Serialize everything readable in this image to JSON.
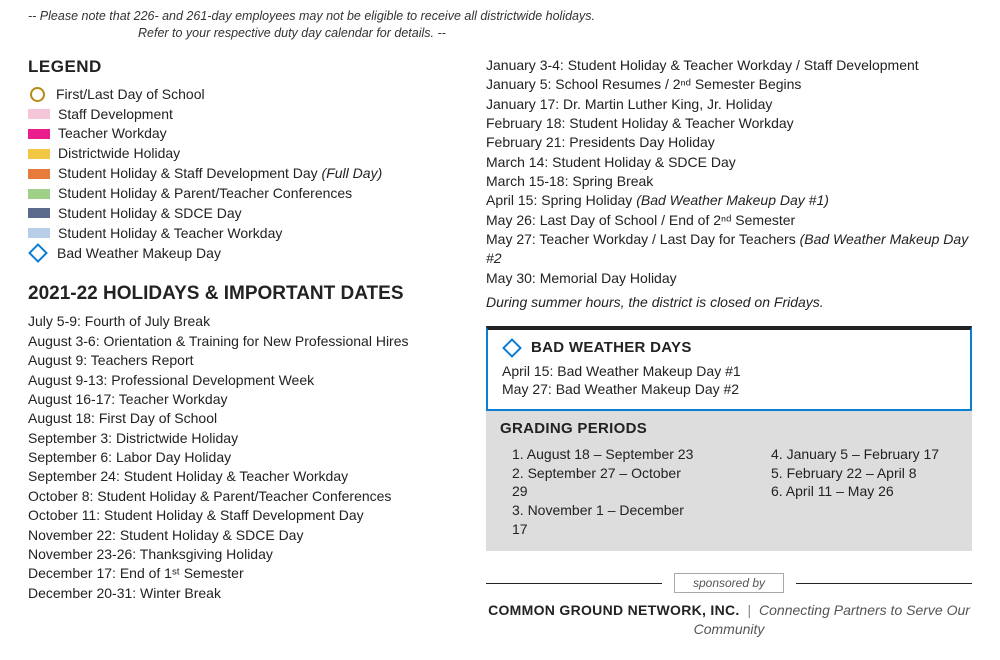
{
  "note_line1": "-- Please note that 226- and 261-day employees may not be eligible to receive all districtwide holidays.",
  "note_line2": "Refer to your respective duty day calendar for details.  --",
  "legend": {
    "title": "LEGEND",
    "items": [
      {
        "type": "circle",
        "color": "#b58a1a",
        "label": "First/Last Day of School"
      },
      {
        "type": "swatch",
        "color": "#f5c6d9",
        "label": "Staff Development"
      },
      {
        "type": "swatch",
        "color": "#e91e8c",
        "label": "Teacher Workday"
      },
      {
        "type": "swatch",
        "color": "#f2c744",
        "label": "Districtwide Holiday"
      },
      {
        "type": "swatch",
        "color": "#e77b3c",
        "label": "Student Holiday & Staff Development Day",
        "sub": "(Full Day)"
      },
      {
        "type": "swatch",
        "color": "#9fd087",
        "label": "Student Holiday & Parent/Teacher Conferences"
      },
      {
        "type": "swatch",
        "color": "#5a6a8a",
        "label": "Student Holiday & SDCE Day"
      },
      {
        "type": "swatch",
        "color": "#b8cde8",
        "label": "Student Holiday & Teacher Workday"
      },
      {
        "type": "diamond",
        "color": "#0a7ed2",
        "label": "Bad Weather Makeup Day"
      }
    ]
  },
  "holidays_title": "2021-22 HOLIDAYS & IMPORTANT DATES",
  "dates_left": [
    "July 5-9:  Fourth of July Break",
    "August 3-6:  Orientation & Training for New Professional Hires",
    "August 9:  Teachers Report",
    "August 9-13:  Professional Development Week",
    "August 16-17:  Teacher Workday",
    "August 18:  First Day of School",
    "September 3:  Districtwide Holiday",
    "September 6:  Labor Day Holiday",
    "September 24:  Student Holiday & Teacher Workday",
    "October 8:  Student Holiday & Parent/Teacher Conferences",
    "October 11:  Student Holiday & Staff Development Day",
    "November 22:  Student Holiday & SDCE Day",
    "November 23-26:  Thanksgiving Holiday",
    "December 17:  End of 1ˢᵗ Semester",
    "December 20-31:  Winter Break"
  ],
  "dates_right": [
    {
      "text": "January 3-4:  Student Holiday & Teacher Workday / Staff Development"
    },
    {
      "text": "January 5:  School Resumes / 2ⁿᵈ Semester Begins"
    },
    {
      "text": "January 17:  Dr. Martin Luther King, Jr. Holiday"
    },
    {
      "text": "February 18:  Student Holiday & Teacher Workday"
    },
    {
      "text": "February 21:  Presidents Day Holiday"
    },
    {
      "text": "March 14:  Student Holiday & SDCE Day"
    },
    {
      "text": "March 15-18:  Spring Break"
    },
    {
      "text": "April 15:  Spring Holiday ",
      "italic": "(Bad Weather Makeup Day #1)"
    },
    {
      "text": "May 26:  Last Day of School / End of 2ⁿᵈ Semester"
    },
    {
      "text": "May 27:  Teacher Workday / Last Day for Teachers ",
      "italic": "(Bad Weather Makeup Day #2"
    },
    {
      "text": "May 30:  Memorial Day Holiday"
    }
  ],
  "summer_note": "During summer hours, the district is closed on Fridays.",
  "bwd": {
    "title": "BAD WEATHER DAYS",
    "diamond_color": "#0a7ed2",
    "items": [
      "April 15:  Bad Weather Makeup Day #1",
      "May 27:  Bad Weather Makeup Day #2"
    ]
  },
  "grading": {
    "title": "GRADING PERIODS",
    "left": [
      "1.  August 18 – September 23",
      "2.  September 27  – October 29",
      "3.  November 1 – December 17"
    ],
    "right": [
      "4.  January 5 – February 17",
      "5.  February 22 – April 8",
      "6.  April 11 – May 26"
    ]
  },
  "sponsor": {
    "label": "sponsored by",
    "name": "COMMON GROUND NETWORK, INC.",
    "tagline": "Connecting Partners to Serve Our Community"
  }
}
